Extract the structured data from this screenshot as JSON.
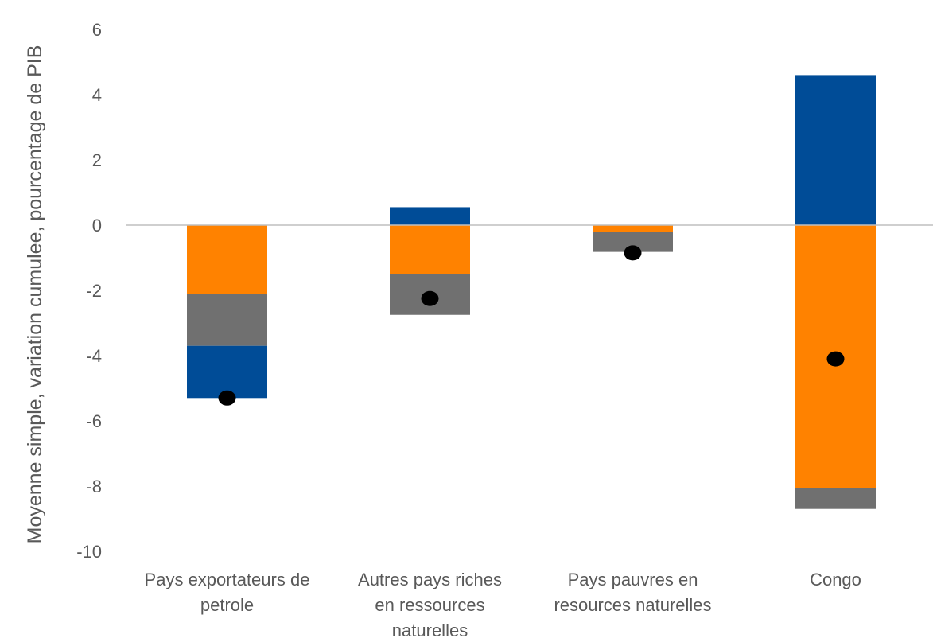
{
  "chart_data": {
    "type": "bar",
    "stacked": true,
    "ylabel": "Moyenne simple, variation cumulee, pourcentage de PIB",
    "ylim": [
      -10,
      6
    ],
    "yticks": [
      6,
      4,
      2,
      0,
      -2,
      -4,
      -6,
      -8,
      -10
    ],
    "categories": [
      [
        "Pays exportateurs de",
        "petrole"
      ],
      [
        "Autres pays riches",
        "en ressources",
        "naturelles"
      ],
      [
        "Pays pauvres en",
        "resources naturelles"
      ],
      [
        "Congo"
      ]
    ],
    "series": [
      {
        "color": "#FF8200",
        "values": [
          -2.1,
          -1.5,
          -0.2,
          -8.05
        ]
      },
      {
        "color": "#707070",
        "values": [
          -1.6,
          -1.25,
          -0.62,
          -0.65
        ]
      },
      {
        "color": "#004C97",
        "values": [
          -1.6,
          0.55,
          0.0,
          4.6
        ]
      }
    ],
    "totals": {
      "color": "#000000",
      "values": [
        -5.3,
        -2.25,
        -0.85,
        -4.1
      ]
    },
    "grid": false,
    "zero_line_color": "#BFBFBF"
  }
}
